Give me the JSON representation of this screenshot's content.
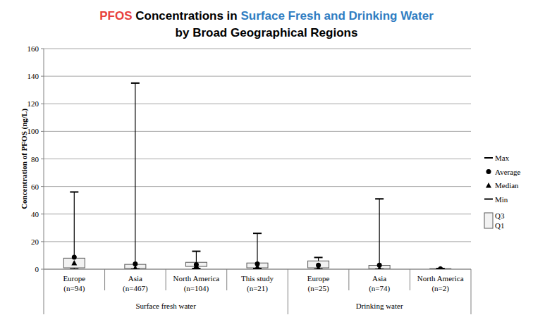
{
  "chart_data": {
    "type": "box",
    "title": [
      {
        "text": "PFOS",
        "color": "#e8403c"
      },
      {
        "text": " Concentrations in ",
        "color": "#000000"
      },
      {
        "text": "Surface Fresh and Drinking Water",
        "color": "#2f7dc2"
      }
    ],
    "subtitle": "by Broad Geographical Regions",
    "y_label": "Concentration of PFOS (ng/L)",
    "categories": [
      "Europe\n(n=94)",
      "Asia\n(n=467)",
      "North America\n(n=104)",
      "This study\n(n=21)",
      "Europe\n(n=25)",
      "Asia\n(n=74)",
      "North America\n(n=2)"
    ],
    "category_groups": [
      "Surface fresh water",
      "Surface fresh water",
      "Surface fresh water",
      "Surface fresh water",
      "Drinking water",
      "Drinking water",
      "Drinking water"
    ],
    "series": [
      {
        "name": "Max",
        "marker": "dash",
        "color": "#000000",
        "values": [
          56,
          135,
          13,
          26,
          8.5,
          51,
          0.5
        ]
      },
      {
        "name": "Average",
        "marker": "circle",
        "color": "#000000",
        "values": [
          8.7,
          3.8,
          3.3,
          3.8,
          3,
          3,
          0.3
        ]
      },
      {
        "name": "Median",
        "marker": "triangle",
        "color": "#000000",
        "values": [
          4.6,
          1,
          2.5,
          1.8,
          1,
          0.7,
          0.3
        ]
      },
      {
        "name": "Min",
        "marker": "dash",
        "color": "#000000",
        "values": [
          0,
          0,
          0.5,
          0.5,
          0,
          0,
          0.1
        ]
      },
      {
        "name": "Q3",
        "marker": "box",
        "color": "#f2f2f2",
        "values": [
          8,
          3.5,
          5,
          4.5,
          6,
          2.8,
          0.4
        ]
      },
      {
        "name": "Q1",
        "marker": "box",
        "color": "#f2f2f2",
        "values": [
          1,
          0.5,
          2,
          1,
          1,
          0.3,
          0.2
        ]
      }
    ],
    "ylim": [
      0,
      160
    ],
    "yticks": [
      0,
      20,
      40,
      60,
      80,
      100,
      120,
      140,
      160
    ],
    "grid": true,
    "legend": "right"
  }
}
